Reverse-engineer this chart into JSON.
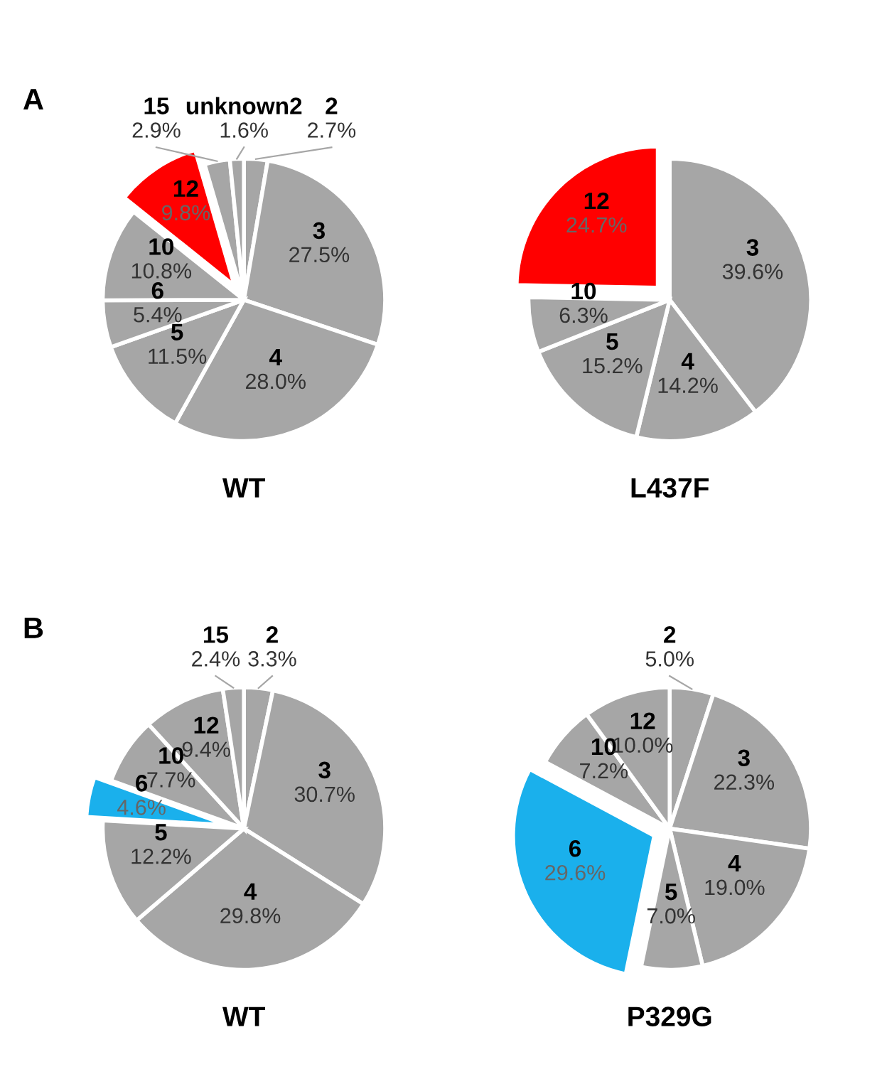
{
  "chart_data": [
    {
      "type": "pie",
      "title": "WT",
      "annotations": [
        "A"
      ],
      "categories": [
        "2",
        "3",
        "4",
        "5",
        "6",
        "10",
        "12",
        "15",
        "unknown2"
      ],
      "values": [
        2.7,
        27.5,
        28.0,
        11.5,
        5.4,
        10.8,
        9.8,
        2.9,
        1.6
      ],
      "value_labels": [
        "2.7%",
        "27.5%",
        "28.0%",
        "11.5%",
        "5.4%",
        "10.8%",
        "9.8%",
        "2.9%",
        "1.6%"
      ],
      "colors": [
        "#a6a6a6",
        "#a6a6a6",
        "#a6a6a6",
        "#a6a6a6",
        "#a6a6a6",
        "#a6a6a6",
        "#ff0000",
        "#a6a6a6",
        "#a6a6a6"
      ]
    },
    {
      "type": "pie",
      "title": "L437F",
      "categories": [
        "3",
        "4",
        "5",
        "10",
        "12"
      ],
      "values": [
        39.6,
        14.2,
        15.2,
        6.3,
        24.7
      ],
      "value_labels": [
        "39.6%",
        "14.2%",
        "15.2%",
        "6.3%",
        "24.7%"
      ],
      "colors": [
        "#a6a6a6",
        "#a6a6a6",
        "#a6a6a6",
        "#a6a6a6",
        "#ff0000"
      ]
    },
    {
      "type": "pie",
      "title": "WT",
      "annotations": [
        "B"
      ],
      "categories": [
        "2",
        "3",
        "4",
        "5",
        "6",
        "10",
        "12",
        "15"
      ],
      "values": [
        3.3,
        30.7,
        29.8,
        12.2,
        4.6,
        7.7,
        9.4,
        2.4
      ],
      "value_labels": [
        "3.3%",
        "30.7%",
        "29.8%",
        "12.2%",
        "4.6%",
        "7.7%",
        "9.4%",
        "2.4%"
      ],
      "colors": [
        "#a6a6a6",
        "#a6a6a6",
        "#a6a6a6",
        "#a6a6a6",
        "#1ab0ec",
        "#a6a6a6",
        "#a6a6a6",
        "#a6a6a6"
      ]
    },
    {
      "type": "pie",
      "title": "P329G",
      "categories": [
        "2",
        "3",
        "4",
        "5",
        "6",
        "10",
        "12"
      ],
      "values": [
        5.0,
        22.3,
        19.0,
        7.0,
        29.6,
        7.2,
        10.0
      ],
      "value_labels": [
        "5.0%",
        "22.3%",
        "19.0%",
        "7.0%",
        "29.6%",
        "7.2%",
        "10.0%"
      ],
      "colors": [
        "#a6a6a6",
        "#a6a6a6",
        "#a6a6a6",
        "#a6a6a6",
        "#1ab0ec",
        "#a6a6a6",
        "#a6a6a6"
      ]
    }
  ]
}
